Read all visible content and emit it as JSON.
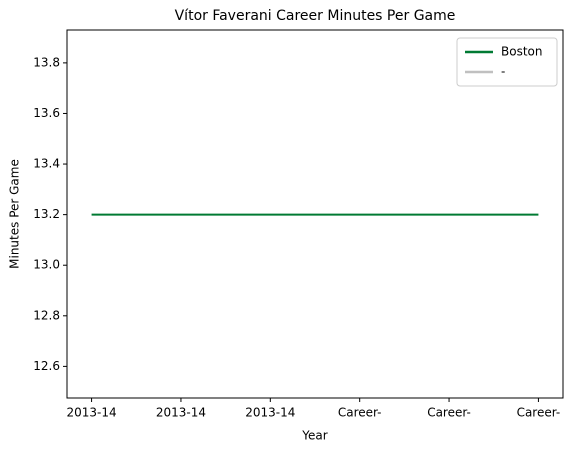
{
  "chart_data": {
    "type": "line",
    "title": "Vítor Faverani Career Minutes Per Game",
    "x_label": "Year",
    "y_label": "Minutes Per Game",
    "categories": [
      "2013-14",
      "2013-14",
      "2013-14",
      "Career-",
      "Career-",
      "Career-"
    ],
    "series": [
      {
        "name": "Boston",
        "color": "#007a33",
        "values": [
          13.2,
          13.2,
          13.2,
          13.2,
          13.2,
          13.2
        ]
      },
      {
        "name": "-",
        "color": "#c0c0c0",
        "values": [
          null,
          null,
          null,
          null,
          null,
          null
        ]
      }
    ],
    "ylim": [
      12.475,
      13.93
    ],
    "yticks": [
      {
        "value": 12.6,
        "label": "12.6"
      },
      {
        "value": 12.8,
        "label": "12.8"
      },
      {
        "value": 13.0,
        "label": "13.0"
      },
      {
        "value": 13.2,
        "label": "13.2"
      },
      {
        "value": 13.4,
        "label": "13.4"
      },
      {
        "value": 13.6,
        "label": "13.6"
      },
      {
        "value": 13.8,
        "label": "13.8"
      }
    ],
    "legend": "upper right"
  }
}
